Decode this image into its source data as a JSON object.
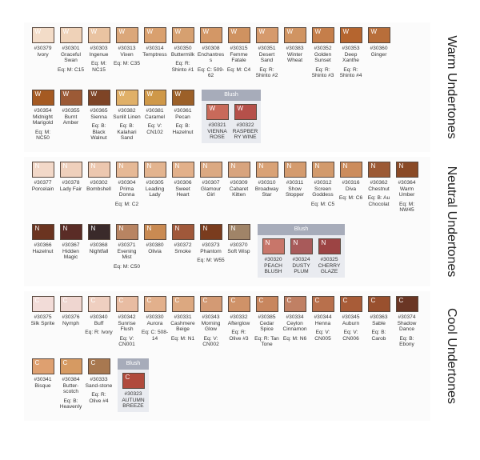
{
  "sections": [
    {
      "title": "Warm Undertones",
      "letter": "W",
      "rows": [
        [
          {
            "num": "#30379",
            "name": "Ivory",
            "color": "#f3dcc8"
          },
          {
            "num": "#30301",
            "name": "Graceful Swan",
            "eq": "Eq: M: C15",
            "color": "#efd2b8"
          },
          {
            "num": "#30303",
            "name": "Ingenue",
            "eq": "Eq: M: NC15",
            "color": "#e9c3a1"
          },
          {
            "num": "#30313",
            "name": "Vixen",
            "eq": "Eq: M: C35",
            "color": "#dba77a"
          },
          {
            "num": "#30314",
            "name": "Temptress",
            "color": "#d9a06e"
          },
          {
            "num": "#30350",
            "name": "Buttermilk",
            "eq": "Eq: R: Shinto #1",
            "color": "#d6a070"
          },
          {
            "num": "#30308",
            "name": "Enchantress",
            "eq": "Eq: C: 509-62",
            "color": "#d39766"
          },
          {
            "num": "#30315",
            "name": "Femme Fatale",
            "eq": "Eq: M: C4",
            "color": "#cf9260"
          },
          {
            "num": "#30351",
            "name": "Desert Sand",
            "eq": "Eq: R: Shinto #2",
            "color": "#d69a6c"
          },
          {
            "num": "#30383",
            "name": "Winter Wheat",
            "color": "#d09462"
          },
          {
            "num": "#30352",
            "name": "Golden Sunset",
            "eq": "Eq: R: Shinto #3",
            "color": "#c57e4a"
          },
          {
            "num": "#30353",
            "name": "Deep Xanthe",
            "eq": "Eq: R: Shinto #4",
            "color": "#b5652f"
          },
          {
            "num": "#30360",
            "name": "Ginger",
            "color": "#b86e3a"
          }
        ],
        [
          {
            "num": "#30354",
            "name": "Midnight Marigold",
            "eq": "Eq: M: NC50",
            "color": "#a55a22"
          },
          {
            "num": "#30355",
            "name": "Burnt Amber",
            "color": "#9c5a36"
          },
          {
            "num": "#30365",
            "name": "Sienna",
            "eq": "Eq: B: Black Walnut",
            "color": "#7e4426"
          },
          {
            "num": "#30382",
            "name": "Sunlit Linen",
            "eq": "Eq: B: Kalahari Sand",
            "color": "#e0b068"
          },
          {
            "num": "#30381",
            "name": "Caramel",
            "eq": "Eq: V: CN102",
            "color": "#cf9848"
          },
          {
            "num": "#30361",
            "name": "Pecan",
            "eq": "Eq: B: Hazelnut",
            "color": "#9c6028"
          }
        ]
      ],
      "blush_label": "Blush",
      "blush": [
        {
          "num": "#30321",
          "name": "Vienna Rose",
          "color": "#c86a5a"
        },
        {
          "num": "#30322",
          "name": "Raspberry Wine",
          "color": "#b5504a"
        }
      ]
    },
    {
      "title": "Neutral Undertones",
      "letter": "N",
      "rows": [
        [
          {
            "num": "#30377",
            "name": "Porcelain",
            "color": "#f2d8c8"
          },
          {
            "num": "#30378",
            "name": "Lady Fair",
            "color": "#efd0bc"
          },
          {
            "num": "#30302",
            "name": "Bombshell",
            "color": "#ecc7af"
          },
          {
            "num": "#30304",
            "name": "Prima Donna",
            "eq": "Eq: M: C2",
            "color": "#e6b996"
          },
          {
            "num": "#30305",
            "name": "Leading Lady",
            "color": "#e3b48f"
          },
          {
            "num": "#30306",
            "name": "Sweet Heart",
            "color": "#e2b08a"
          },
          {
            "num": "#30307",
            "name": "Glamour Girl",
            "color": "#dba982"
          },
          {
            "num": "#30309",
            "name": "Cabaret Kitten",
            "color": "#d8a47e"
          },
          {
            "num": "#30310",
            "name": "Broadway Star",
            "color": "#d9a276"
          },
          {
            "num": "#30311",
            "name": "Show Stopper",
            "color": "#d49b6e"
          },
          {
            "num": "#30312",
            "name": "Screen Goddess",
            "eq": "Eq: M: C5",
            "color": "#d29a6c"
          },
          {
            "num": "#30316",
            "name": "Diva",
            "eq": "Eq: M: C6",
            "color": "#cc8c5c"
          },
          {
            "num": "#30362",
            "name": "Chestnut",
            "eq": "Eq: B: Au Chocolat",
            "color": "#9c5a35"
          },
          {
            "num": "#30364",
            "name": "Warm Umber",
            "eq": "Eq: M: NW45",
            "color": "#8a4a26"
          }
        ],
        [
          {
            "num": "#30366",
            "name": "Hazelnut",
            "color": "#6b3420"
          },
          {
            "num": "#30367",
            "name": "Hidden Magic",
            "color": "#5a2c26"
          },
          {
            "num": "#30368",
            "name": "Nightfall",
            "color": "#3a2a2a"
          },
          {
            "num": "#30371",
            "name": "Evening Mist",
            "eq": "Eq: M: C50",
            "color": "#b88462"
          },
          {
            "num": "#30380",
            "name": "Olivia",
            "color": "#c98a52"
          },
          {
            "num": "#30372",
            "name": "Smoke",
            "color": "#a0583a"
          },
          {
            "num": "#30373",
            "name": "Phantom",
            "eq": "Eq: M: W55",
            "color": "#7a3c1e"
          },
          {
            "num": "#30370",
            "name": "Soft Wisp",
            "color": "#a08468"
          }
        ]
      ],
      "blush_label": "Blush",
      "blush": [
        {
          "num": "#30320",
          "name": "Peach Blush",
          "color": "#c8766a"
        },
        {
          "num": "#30324",
          "name": "Dusty Plum",
          "color": "#a85a5a"
        },
        {
          "num": "#30325",
          "name": "Cherry Glaze",
          "color": "#9c4444"
        }
      ]
    },
    {
      "title": "Cool Undertones",
      "letter": "C",
      "rows": [
        [
          {
            "num": "#30375",
            "name": "Silk Sprite",
            "color": "#f2dcd8"
          },
          {
            "num": "#30376",
            "name": "Nymph",
            "color": "#efd6d0"
          },
          {
            "num": "#30340",
            "name": "Buff",
            "eq": "Eq: R: Ivory",
            "color": "#efcfc0"
          },
          {
            "num": "#30342",
            "name": "Sunrise Flush",
            "eq": "Eq: V: CN001",
            "color": "#e8bca2"
          },
          {
            "num": "#30330",
            "name": "Aurora",
            "eq": "Eq: C: 508-14",
            "color": "#e2b08c"
          },
          {
            "num": "#30331",
            "name": "Cashmere Beige",
            "eq": "Eq: M: N1",
            "color": "#dca880"
          },
          {
            "num": "#30343",
            "name": "Morning Glow",
            "eq": "Eq: V: CN002",
            "color": "#d39a74"
          },
          {
            "num": "#30332",
            "name": "Afterglow",
            "eq": "Eq: R: Olive #3",
            "color": "#cf9268"
          },
          {
            "num": "#30385",
            "name": "Cedar Spice",
            "eq": "Eq: R: Tan Tone",
            "color": "#c8865e"
          },
          {
            "num": "#30334",
            "name": "Ceylon Cinnamon",
            "eq": "Eq: M: N6",
            "color": "#c08064"
          },
          {
            "num": "#30344",
            "name": "Henna",
            "eq": "Eq: V: CN005",
            "color": "#b8704c"
          },
          {
            "num": "#30345",
            "name": "Auburn",
            "eq": "Eq: V: CN006",
            "color": "#a85c38"
          },
          {
            "num": "#30363",
            "name": "Sable",
            "eq": "Eq: B: Carob",
            "color": "#99502e"
          },
          {
            "num": "#30374",
            "name": "Shadow Dance",
            "eq": "Eq: B: Ebony",
            "color": "#6a3624"
          }
        ],
        [
          {
            "num": "#30341",
            "name": "Bisque",
            "color": "#dea070"
          },
          {
            "num": "#30384",
            "name": "Butter-scotch",
            "eq": "Eq: B: Heavenly",
            "color": "#d69a62"
          },
          {
            "num": "#30333",
            "name": "Sand-stone",
            "eq": "Eq: R: Olive #4",
            "color": "#a87850"
          }
        ]
      ],
      "blush_label": "Blush",
      "blush": [
        {
          "num": "#30323",
          "name": "Autumn Breeze",
          "color": "#b04a3c"
        }
      ]
    }
  ]
}
